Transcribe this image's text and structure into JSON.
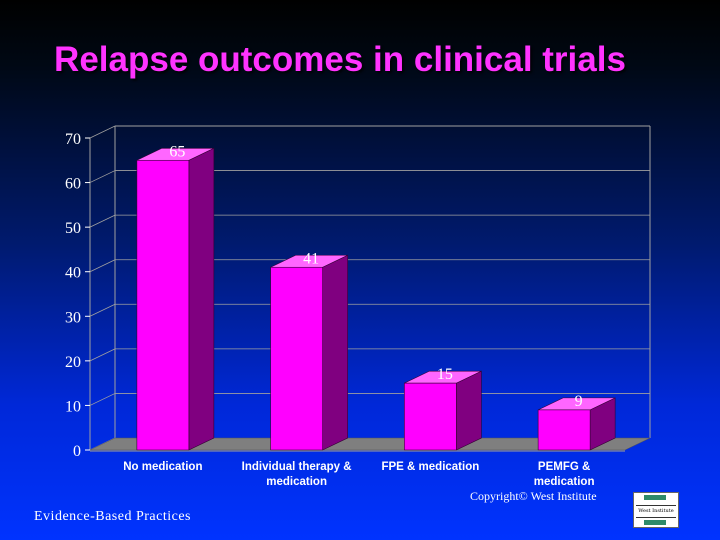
{
  "slide": {
    "title": "Relapse outcomes in clinical trials",
    "footer_left": "Evidence-Based Practices",
    "copyright": "Copyright© West Institute",
    "logo_text": "West Institute"
  },
  "colors": {
    "bar_front": "#ff00ff",
    "bar_side": "#800080",
    "bar_top": "#ff66ff",
    "floor": "#7f7f7f",
    "axis_text": "#ffffff",
    "data_label": "#ffffff",
    "grid": "#a0a0a0"
  },
  "chart_data": {
    "type": "bar",
    "categories": [
      "No medication",
      "Individual therapy & medication",
      "FPE & medication",
      "PEMFG & medication"
    ],
    "category_lines": [
      [
        "No medication"
      ],
      [
        "Individual therapy &",
        "medication"
      ],
      [
        "FPE & medication"
      ],
      [
        "PEMFG &",
        "medication"
      ]
    ],
    "values": [
      65,
      41,
      15,
      9
    ],
    "data_labels": [
      "65",
      "41",
      "15",
      "9"
    ],
    "ylim": [
      0,
      70
    ],
    "yticks": [
      0,
      10,
      20,
      30,
      40,
      50,
      60,
      70
    ],
    "grid": true,
    "legend": "none",
    "style": "3d"
  }
}
